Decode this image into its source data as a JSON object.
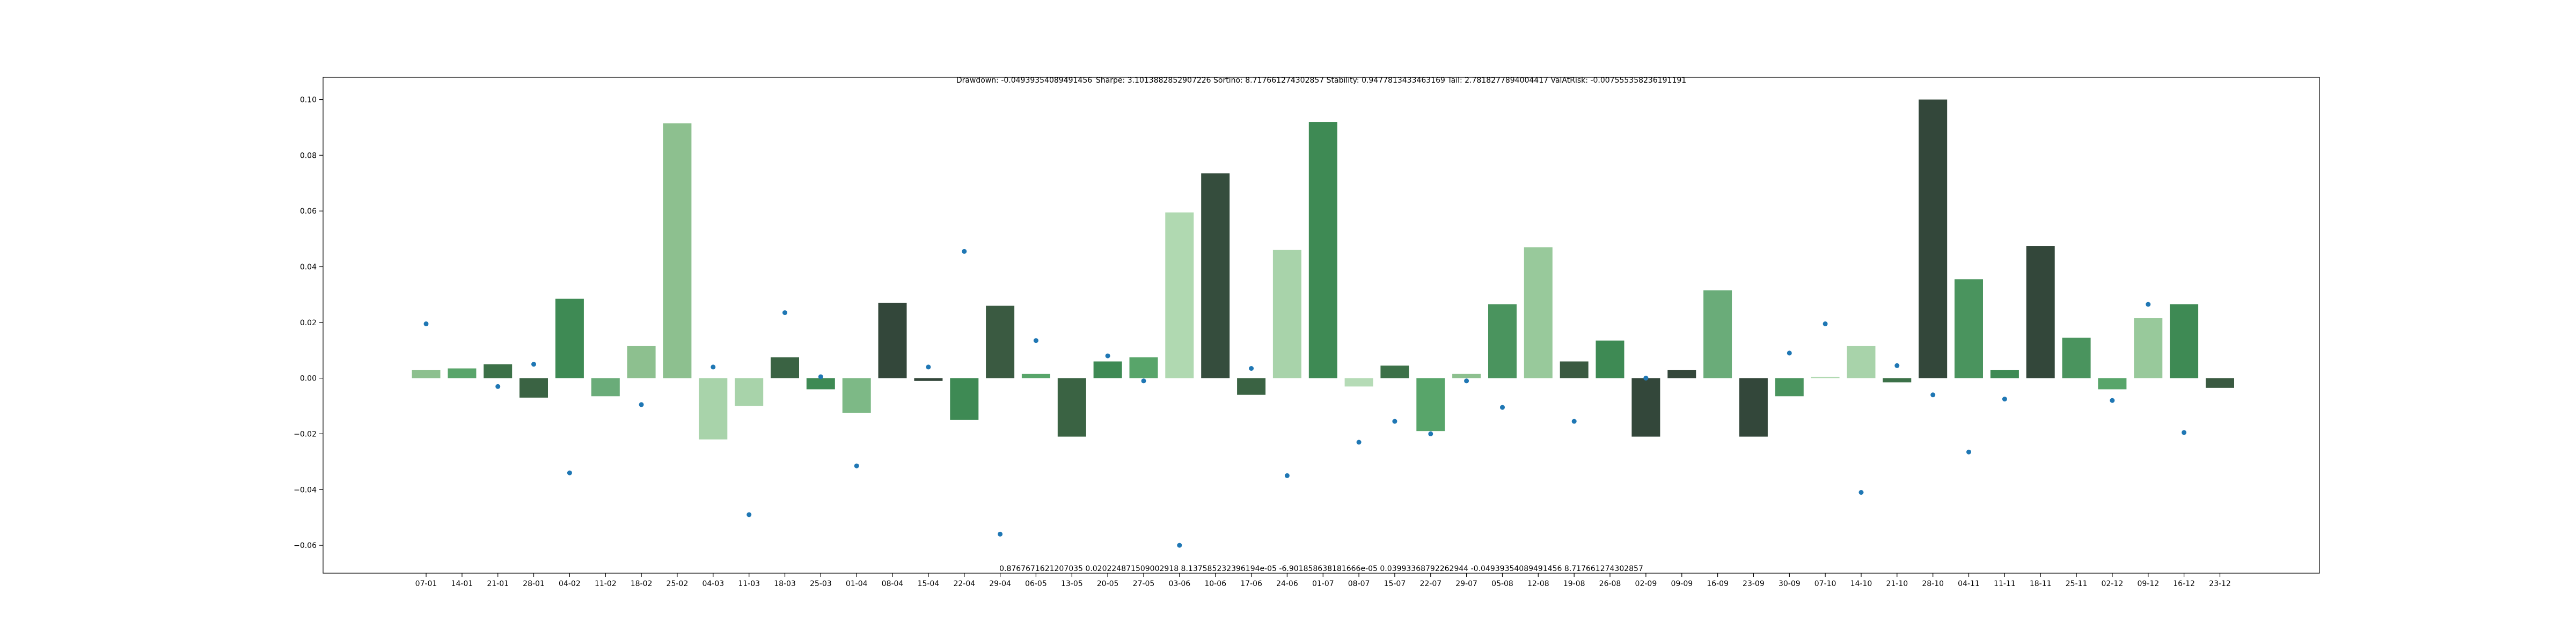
{
  "chart_data": {
    "type": "bar",
    "title": "Drawdown: -0.04939354089491456  Sharpe: 3.1013882852907226 Sortino: 8.717661274302857 Stability: 0.9477813433463169 Tail: 2.7818277894004417 ValAtRisk: -0.007555358236191191",
    "bottom_text": "0.8767671621207035 0.020224871509002918 8.137585232396194e-05 -6.901858638181666e-05 0.03993368792262944 -0.04939354089491456 8.717661274302857",
    "xlabel": "",
    "ylabel": "",
    "ylim": [
      -0.07,
      0.108
    ],
    "yticks": [
      -0.06,
      -0.04,
      -0.02,
      0.0,
      0.02,
      0.04,
      0.06,
      0.08,
      0.1
    ],
    "ytick_labels": [
      "−0.06",
      "−0.04",
      "−0.02",
      "0.00",
      "0.02",
      "0.04",
      "0.06",
      "0.08",
      "0.10"
    ],
    "grid": false,
    "categories": [
      "07-01",
      "14-01",
      "21-01",
      "28-01",
      "04-02",
      "11-02",
      "18-02",
      "25-02",
      "04-03",
      "11-03",
      "18-03",
      "25-03",
      "01-04",
      "08-04",
      "15-04",
      "22-04",
      "29-04",
      "06-05",
      "13-05",
      "20-05",
      "27-05",
      "03-06",
      "10-06",
      "17-06",
      "24-06",
      "01-07",
      "08-07",
      "15-07",
      "22-07",
      "29-07",
      "05-08",
      "12-08",
      "19-08",
      "26-08",
      "02-09",
      "09-09",
      "16-09",
      "23-09",
      "30-09",
      "07-10",
      "14-10",
      "21-10",
      "28-10",
      "04-11",
      "11-11",
      "18-11",
      "25-11",
      "02-12",
      "09-12",
      "16-12",
      "23-12"
    ],
    "series": [
      {
        "type": "bar",
        "values": [
          0.003,
          0.0035,
          0.005,
          -0.007,
          0.0285,
          -0.0065,
          0.0115,
          0.0915,
          -0.022,
          -0.01,
          0.0075,
          -0.004,
          -0.0125,
          0.027,
          -0.001,
          -0.015,
          0.026,
          0.0015,
          -0.021,
          0.006,
          0.0075,
          0.0595,
          0.0735,
          -0.006,
          0.046,
          0.092,
          -0.003,
          0.0045,
          -0.019,
          0.0015,
          0.0265,
          0.047,
          0.006,
          0.0135,
          -0.021,
          0.003,
          0.0315,
          -0.021,
          -0.0065,
          0.0005,
          0.0115,
          -0.0015,
          0.1,
          0.0355,
          0.003,
          0.0475,
          0.0145,
          -0.004,
          0.0215,
          0.0265,
          -0.0035
        ],
        "colors": [
          "#8dc08f",
          "#58a56a",
          "#3c7148",
          "#3a6343",
          "#3e8a54",
          "#6aac79",
          "#8dc08f",
          "#8dc08f",
          "#a8d3aa",
          "#a8d3aa",
          "#3a6343",
          "#3e8a54",
          "#7db986",
          "#33473a",
          "#33473a",
          "#3e8a54",
          "#3a5a41",
          "#58a56a",
          "#3a6343",
          "#3e8a54",
          "#58a56a",
          "#b0d9b1",
          "#354d3d",
          "#3a6343",
          "#a8d3aa",
          "#3e8a54",
          "#b5dbb6",
          "#3c7148",
          "#58a56a",
          "#8dc08f",
          "#4a945e",
          "#98c99b",
          "#3a5a41",
          "#3e8a54",
          "#33473a",
          "#33473a",
          "#6aac79",
          "#33473a",
          "#4a945e",
          "#b0d9b1",
          "#a8d3aa",
          "#3c7148",
          "#33473a",
          "#4a945e",
          "#3e8a54",
          "#33473a",
          "#4a945e",
          "#58a56a",
          "#98c99b",
          "#3e8a54",
          "#3a5a41"
        ]
      },
      {
        "type": "scatter",
        "color": "#1f77b4",
        "values": [
          0.0195,
          null,
          -0.003,
          0.005,
          -0.034,
          null,
          -0.0095,
          null,
          0.004,
          -0.049,
          0.0235,
          0.0005,
          -0.0315,
          null,
          0.004,
          0.0455,
          -0.056,
          0.0135,
          null,
          0.008,
          -0.001,
          -0.06,
          null,
          0.0035,
          -0.035,
          null,
          -0.023,
          -0.0155,
          -0.02,
          -0.001,
          -0.0105,
          null,
          -0.0155,
          null,
          0.0,
          null,
          null,
          null,
          0.009,
          0.0195,
          -0.041,
          0.0045,
          -0.006,
          -0.0265,
          -0.0075,
          null,
          null,
          -0.008,
          0.0265,
          -0.0195,
          null
        ]
      }
    ]
  }
}
